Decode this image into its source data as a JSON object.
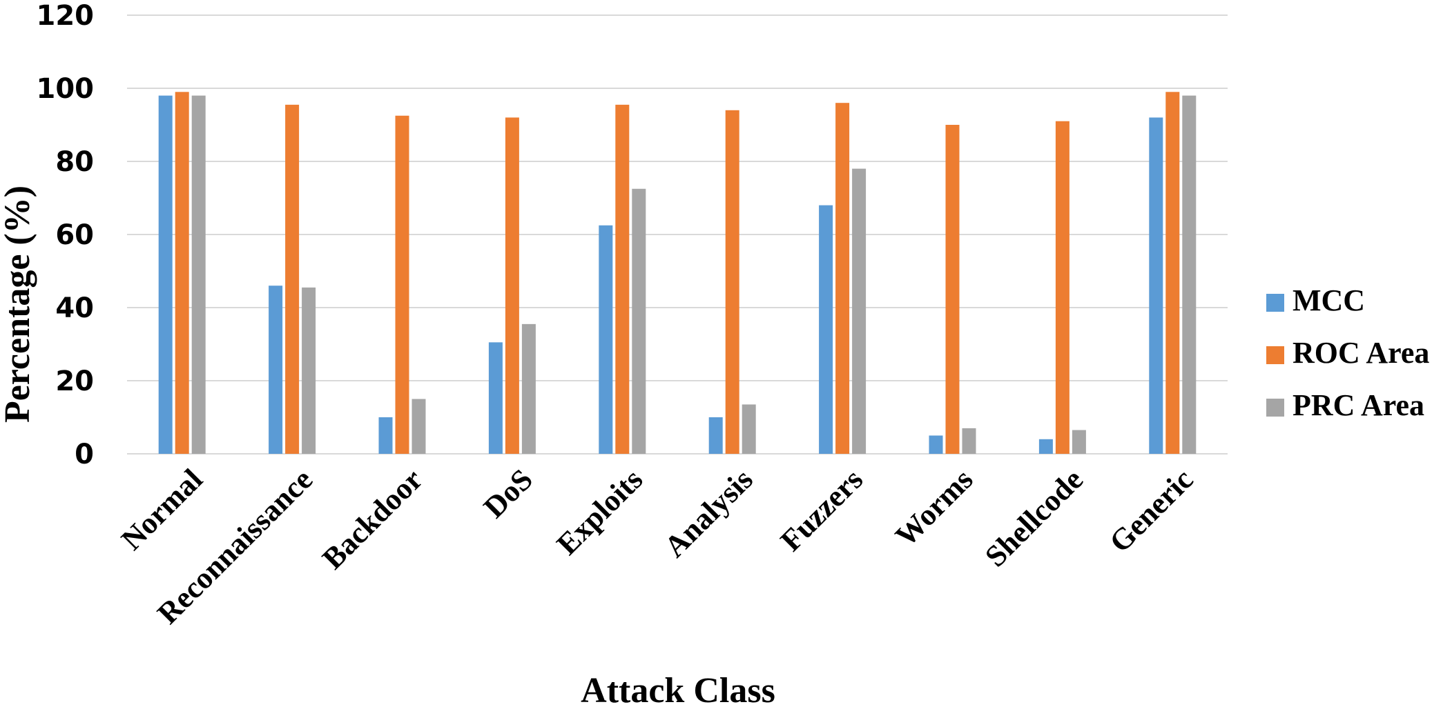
{
  "chart_data": {
    "type": "bar",
    "title": "",
    "xlabel": "Attack Class",
    "ylabel": "Percentage (%)",
    "ylim": [
      0,
      120
    ],
    "yticks": [
      0,
      20,
      40,
      60,
      80,
      100,
      120
    ],
    "grid": true,
    "legend_position": "right",
    "categories": [
      "Normal",
      "Reconnaissance",
      "Backdoor",
      "DoS",
      "Exploits",
      "Analysis",
      "Fuzzers",
      "Worms",
      "Shellcode",
      "Generic"
    ],
    "series": [
      {
        "name": "MCC",
        "color": "#5b9bd5",
        "values": [
          98,
          46,
          10,
          30.5,
          62.5,
          10,
          68,
          5,
          4,
          92
        ]
      },
      {
        "name": "ROC Area",
        "color": "#ed7d31",
        "values": [
          99,
          95.5,
          92.5,
          92,
          95.5,
          94,
          96,
          90,
          91,
          99
        ]
      },
      {
        "name": "PRC Area",
        "color": "#a5a5a5",
        "values": [
          98,
          45.5,
          15,
          35.5,
          72.5,
          13.5,
          78,
          7,
          6.5,
          98
        ]
      }
    ]
  }
}
